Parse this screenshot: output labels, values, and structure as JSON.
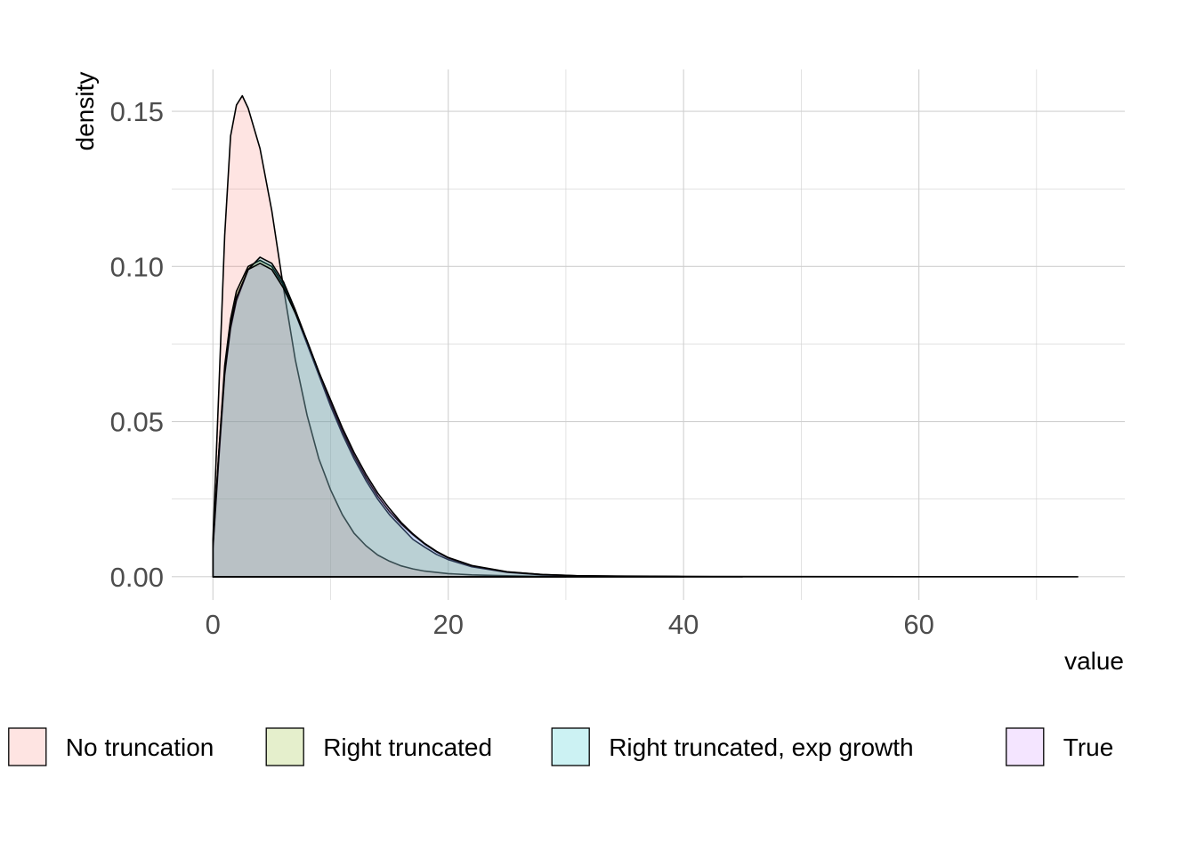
{
  "chart_data": {
    "type": "area",
    "title": "",
    "xlabel": "value",
    "ylabel": "density",
    "xlim": [
      -3.5,
      77.5
    ],
    "ylim": [
      -0.0075,
      0.1635
    ],
    "xticks": [
      0,
      20,
      40,
      60
    ],
    "xtick_labels": [
      "0",
      "20",
      "40",
      "60"
    ],
    "yticks": [
      0.0,
      0.05,
      0.1,
      0.15
    ],
    "ytick_labels": [
      "0.00",
      "0.05",
      "0.10",
      "0.15"
    ],
    "grid": true,
    "legend_position": "bottom",
    "series": [
      {
        "name": "No truncation",
        "fill": "#F8766D",
        "x": [
          0,
          0.5,
          1,
          1.5,
          2,
          2.5,
          3,
          4,
          5,
          6,
          7,
          8,
          9,
          10,
          11,
          12,
          13,
          14,
          15,
          16,
          17,
          18,
          20,
          22,
          25,
          28,
          30
        ],
        "y": [
          0.012,
          0.06,
          0.11,
          0.142,
          0.152,
          0.155,
          0.151,
          0.138,
          0.118,
          0.093,
          0.07,
          0.052,
          0.038,
          0.028,
          0.02,
          0.014,
          0.01,
          0.007,
          0.005,
          0.0035,
          0.0025,
          0.0018,
          0.001,
          0.0006,
          0.0003,
          0.0001,
          0.0
        ]
      },
      {
        "name": "Right truncated",
        "fill": "#7CAE00",
        "x": [
          0,
          0.5,
          1,
          1.5,
          2,
          3,
          4,
          5,
          6,
          7,
          8,
          9,
          10,
          11,
          12,
          13,
          14,
          15,
          16,
          17,
          18,
          19,
          20,
          22,
          25,
          28,
          31,
          35,
          40
        ],
        "y": [
          0.01,
          0.04,
          0.068,
          0.083,
          0.092,
          0.1,
          0.102,
          0.1,
          0.094,
          0.085,
          0.075,
          0.065,
          0.055,
          0.046,
          0.038,
          0.031,
          0.025,
          0.02,
          0.016,
          0.012,
          0.0095,
          0.0072,
          0.0055,
          0.0032,
          0.0014,
          0.0006,
          0.00025,
          0.0001,
          0.0
        ]
      },
      {
        "name": "Right truncated, exp growth",
        "fill": "#00BFC4",
        "x": [
          0,
          0.5,
          1,
          1.5,
          2,
          3,
          4,
          5,
          6,
          7,
          8,
          9,
          10,
          11,
          12,
          13,
          14,
          15,
          16,
          17,
          18,
          19,
          20,
          22,
          25,
          28,
          31,
          35,
          40,
          50,
          60,
          73.5
        ],
        "y": [
          0.009,
          0.038,
          0.065,
          0.08,
          0.089,
          0.099,
          0.103,
          0.101,
          0.095,
          0.086,
          0.076,
          0.066,
          0.056,
          0.047,
          0.039,
          0.032,
          0.026,
          0.021,
          0.017,
          0.0135,
          0.0105,
          0.008,
          0.006,
          0.0035,
          0.0015,
          0.0007,
          0.0003,
          0.0002,
          0.0001,
          5e-05,
          2e-05,
          0.0
        ]
      },
      {
        "name": "True",
        "fill": "#C77CFF",
        "x": [
          0,
          0.5,
          1,
          1.5,
          2,
          3,
          4,
          5,
          6,
          7,
          8,
          9,
          10,
          11,
          12,
          13,
          14,
          15,
          16,
          17,
          18,
          19,
          20,
          22,
          25,
          28,
          31,
          35,
          40,
          45
        ],
        "y": [
          0.01,
          0.04,
          0.066,
          0.081,
          0.09,
          0.099,
          0.101,
          0.099,
          0.093,
          0.085,
          0.076,
          0.066,
          0.057,
          0.048,
          0.04,
          0.033,
          0.027,
          0.022,
          0.0175,
          0.0138,
          0.0107,
          0.0082,
          0.0062,
          0.0036,
          0.0016,
          0.0007,
          0.0003,
          0.00012,
          4e-05,
          0.0
        ]
      }
    ]
  }
}
